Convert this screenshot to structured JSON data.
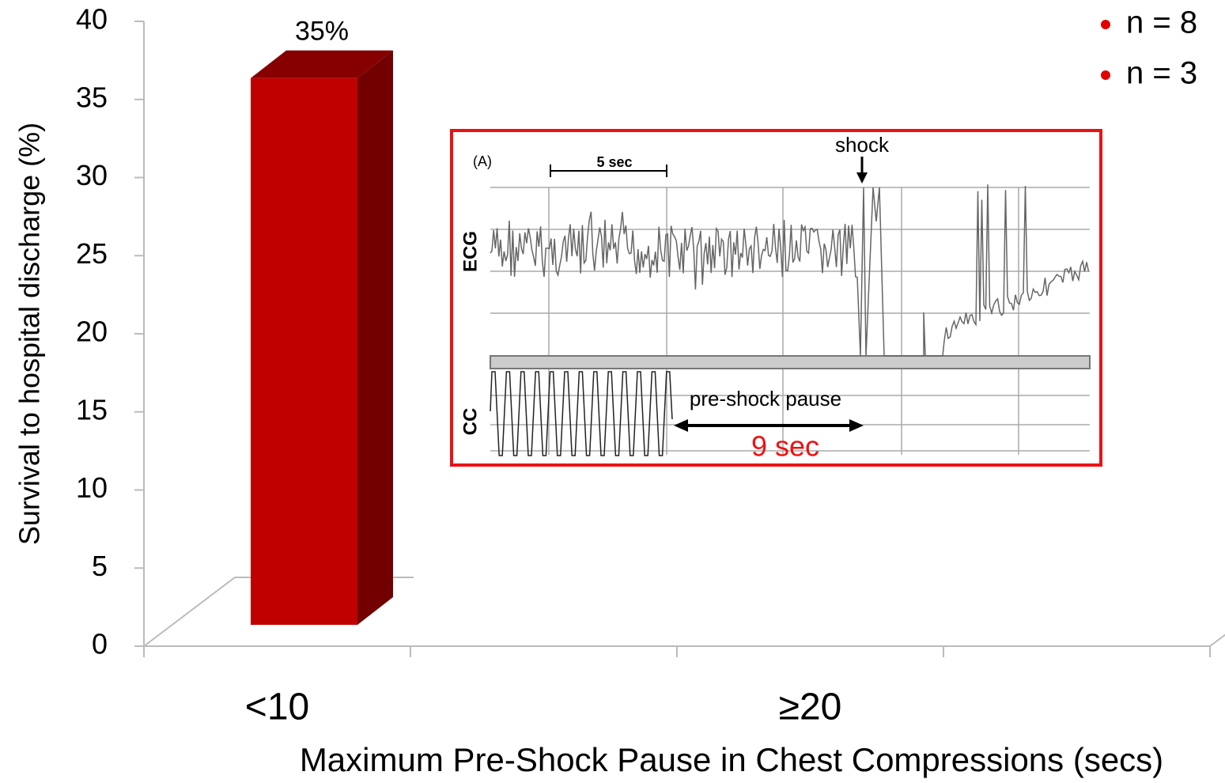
{
  "chart_data": {
    "type": "bar3d",
    "y_label": "Survival to hospital discharge (%)",
    "x_label": "Maximum Pre-Shock Pause in Chest Compressions (secs)",
    "categories": [
      "<10",
      null,
      "≥20",
      null
    ],
    "values": [
      35,
      null,
      null,
      null
    ],
    "value_labels": [
      "35%",
      null,
      null,
      null
    ],
    "color": "#c00000",
    "ylim": [
      0,
      40
    ],
    "yticks": [
      0,
      5,
      10,
      15,
      20,
      25,
      30,
      35,
      40
    ],
    "grid": false,
    "legend": [
      "n = 8",
      "n = 3"
    ],
    "annotations": {
      "panel": "(A)",
      "scale": "5 sec",
      "shock": "shock",
      "ecg": "ECG",
      "cc": "CC",
      "pause": "pre-shock pause",
      "pause_length": "9 sec"
    }
  }
}
